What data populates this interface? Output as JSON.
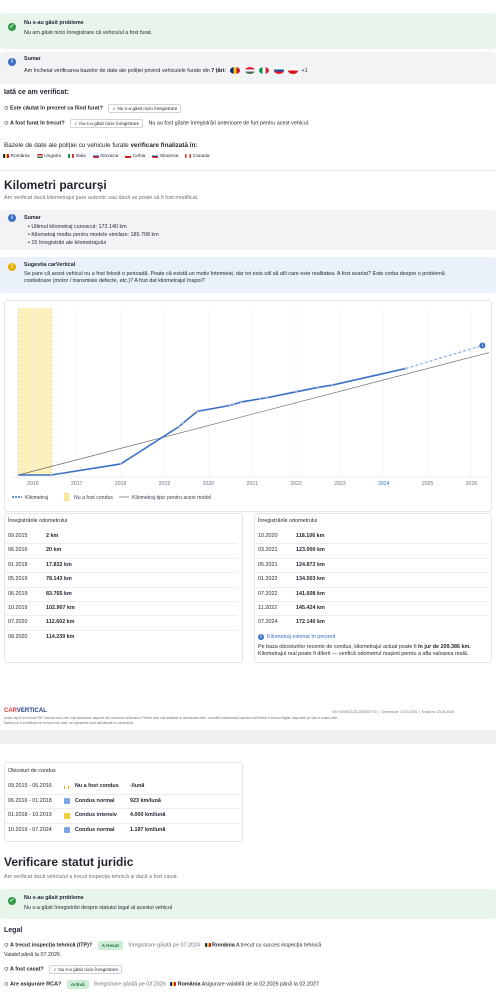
{
  "theft": {
    "status_title": "Nu s-au găsit probleme",
    "status_text": "Nu am găsit nicio înregistrare că vehiculul a fost furat.",
    "summary_title": "Sumar",
    "summary_text": "Am încheiat verificarea bazelor de date ale poliției privind vehiculele furate din",
    "summary_count": "7 țări:",
    "summary_more": "+1",
    "checked_title": "Iată ce am verificat:",
    "checks": [
      {
        "question": "Este căutat în prezent ca fiind furat?",
        "result": "Nu s-a găsit nicio înregistrare"
      },
      {
        "question": "A fost furat în trecut?",
        "result": "Nu s-a găsit nicio înregistrare",
        "note": "Nu au fost găsite înregistrări anterioare de furt pentru acest vehicul."
      }
    ],
    "databases_text": "Bazele de date ale poliției cu vehicule furate",
    "databases_bold": "verificare finalizată în:",
    "countries": [
      "România",
      "Ungaria",
      "Italia",
      "Slovacia",
      "Cehia",
      "Slovenia",
      "Canada"
    ]
  },
  "mileage": {
    "title": "Kilometri parcurși",
    "subtitle": "Am verificat dacă kilometrajul pare autentic sau dacă se poate să fi fost modificat.",
    "summary_title": "Sumar",
    "summary_items": [
      "Ultimul kilometraj cunoscut: 172.140 km",
      "Kilometraj mediu pentru modele similare: 185.708 km",
      "15 înregistrări ale kilometrajului"
    ],
    "suggestion_title": "Sugestia carVertical",
    "suggestion_text": "Se pare că acest vehicul nu a fost folosit o perioadă. Poate că există un motiv întemeiat, dar tot este util să afli care este realitatea. A fost avariat? Este vorba despre o problemă costisitoare (motor / transmisie defecte, etc.)? A fost dat kilometrajul înapoi?"
  },
  "chart_data": {
    "type": "line",
    "xlim": [
      2015.5,
      2026.4
    ],
    "ylim": [
      0,
      270000
    ],
    "xticks": [
      2016,
      2017,
      2018,
      2019,
      2020,
      2021,
      2022,
      2023,
      2024,
      2025,
      2026
    ],
    "highlight_xtick": 2024,
    "grid": true,
    "band": {
      "name": "Nu a fost condus",
      "x": [
        2015.67,
        2016.42
      ],
      "color": "#fbeaa0"
    },
    "series": [
      {
        "name": "Kilometraj",
        "color": "#3b6fc6",
        "x": [
          2015.67,
          2016.42,
          2018.0,
          2019.33,
          2019.42,
          2019.75,
          2020.5,
          2020.58,
          2020.75,
          2021.17,
          2021.33,
          2022.0,
          2022.5,
          2022.83,
          2024.5
        ],
        "values": [
          2,
          20,
          17832,
          78143,
          83765,
          102907,
          112602,
          114239,
          118106,
          123000,
          124872,
          134503,
          141608,
          145424,
          172140
        ]
      },
      {
        "name": "Kilometraj tipic pentru acest model",
        "color": "#6b6b6b",
        "x": [
          2015.67,
          2026.4
        ],
        "values": [
          0,
          198000
        ]
      }
    ],
    "estimate": {
      "color": "#8fb3e8",
      "x": [
        2024.5,
        2026.25
      ],
      "values": [
        172140,
        209386
      ]
    }
  },
  "odometer": {
    "left_title": "Înregistrările odometrului",
    "right_title": "Înregistrările odometrului",
    "left_rows": [
      [
        "09.2015",
        "2 km"
      ],
      [
        "06.2016",
        "20 km"
      ],
      [
        "01.2018",
        "17.832 km"
      ],
      [
        "05.2019",
        "78.143 km"
      ],
      [
        "06.2019",
        "83.765 km"
      ],
      [
        "10.2019",
        "102.907 km"
      ],
      [
        "07.2020",
        "112.602 km"
      ],
      [
        "08.2020",
        "114.239 km"
      ]
    ],
    "right_rows": [
      [
        "10.2020",
        "118.106 km"
      ],
      [
        "03.2021",
        "123.000 km"
      ],
      [
        "05.2021",
        "124.872 km"
      ],
      [
        "01.2022",
        "134.503 km"
      ],
      [
        "07.2022",
        "141.608 km"
      ],
      [
        "11.2022",
        "145.424 km"
      ],
      [
        "07.2024",
        "172.140 km"
      ]
    ],
    "estimate_title": "Kilometraj estimat în prezent",
    "estimate_text_1": "Pe baza obiceiurilor recente de condus, kilometrajul actual poate fi",
    "estimate_bold": "în jur de 209.386 km.",
    "estimate_text_2": "Kilometrajul real poate fi diferit — verifică odometrul mașinii pentru a afla valoarea reală."
  },
  "footer": {
    "logo_a": "CAR",
    "logo_b": "VERTICAL",
    "vin": "VIN: WVWZZZ3CZEE587719",
    "generated": "Generat pe: 23.03.2026",
    "expires": "Expiră la: 23.04.2026",
    "disclaimer_1": "Acest raport în format PDF include doar cele mai importante aspecte ale istoricului vehiculului. Pentru cele mai detaliate și actualizate date, consultă întotdeauna raportul carVertical în format digital, disponibil pe site-ul nostru web.",
    "disclaimer_2": "Datele pot fi modificate de furnizorii de date, iar rapoartele sunt actualizate în consecință."
  },
  "habits": {
    "title": "Obiceiuri de condus",
    "rows": [
      [
        "09.2015 - 06.2016",
        "Nu a fost condus",
        "-/lună"
      ],
      [
        "06.2016 - 01.2018",
        "Condus normal",
        "923 km/lună"
      ],
      [
        "01.2018 - 10.2019",
        "Condus intensiv",
        "4.000 km/lună"
      ],
      [
        "10.2019 - 07.2024",
        "Condus normal",
        "1.197 km/lună"
      ]
    ]
  },
  "legal": {
    "title": "Verificare statut juridic",
    "subtitle": "Am verificat dacă vehiculul a trecut inspecția tehnică și dacă a fost casat.",
    "status_title": "Nu s-au găsit probleme",
    "status_text": "Nu s-a găsit înregistrări despre statutul legal al acestui vehicul",
    "section": "Legal",
    "itp_question": "A trecut inspecția tehnică (ITP)?",
    "itp_chip": "A trecut",
    "itp_found": "Înregistrare găsită pe 07.2024",
    "itp_country": "România",
    "itp_note": "A trecut cu succes inspecția tehnică",
    "itp_valid": "Valabil până la 07.2026",
    "scrap_question": "A fost casat?",
    "scrap_result": "Nu s-a găsit nicio înregistrare",
    "rca_question": "Are asigurare RCA?",
    "rca_chip": "Activă",
    "rca_found": "Înregistrare găsită pe 03.2026",
    "rca_country": "România",
    "rca_note": "Asigurare valabilă de la 02.2026 până la 02.2027"
  }
}
